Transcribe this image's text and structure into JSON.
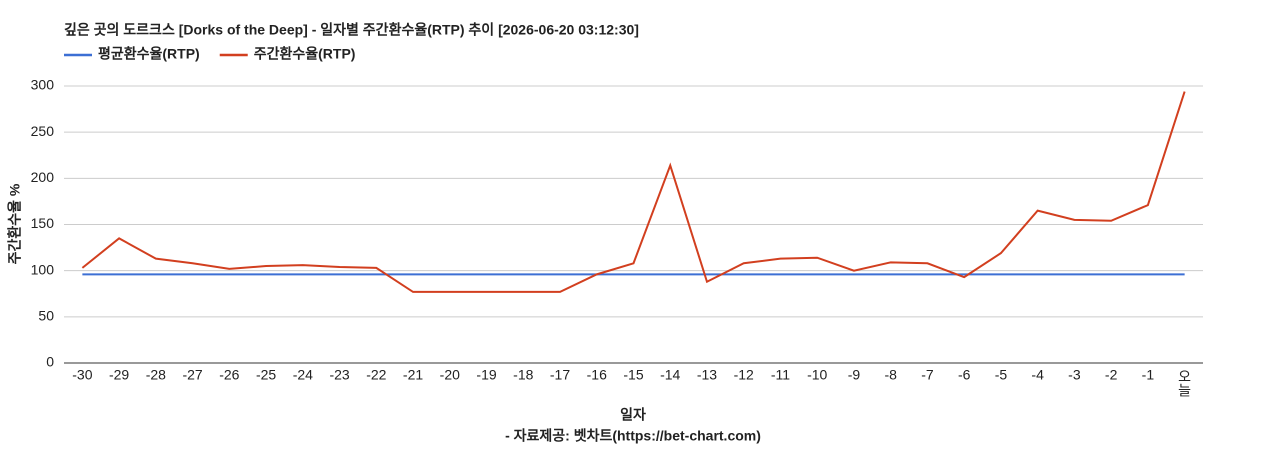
{
  "chart_data": {
    "type": "line",
    "title": "깊은 곳의 도르크스 [Dorks of the Deep] - 일자별 주간환수율(RTP) 추이 [2026-06-20 03:12:30]",
    "x_label": "일자",
    "y_label": "주간환수율 %",
    "source": "- 자료제공: 벳차트(https://bet-chart.com)",
    "categories": [
      "-30",
      "-29",
      "-28",
      "-27",
      "-26",
      "-25",
      "-24",
      "-23",
      "-22",
      "-21",
      "-20",
      "-19",
      "-18",
      "-17",
      "-16",
      "-15",
      "-14",
      "-13",
      "-12",
      "-11",
      "-10",
      "-9",
      "-8",
      "-7",
      "-6",
      "-5",
      "-4",
      "-3",
      "-2",
      "-1",
      "오늘"
    ],
    "series": [
      {
        "name": "평균환수율(RTP)",
        "color": "#3c6fd4",
        "values": [
          96,
          96,
          96,
          96,
          96,
          96,
          96,
          96,
          96,
          96,
          96,
          96,
          96,
          96,
          96,
          96,
          96,
          96,
          96,
          96,
          96,
          96,
          96,
          96,
          96,
          96,
          96,
          96,
          96,
          96,
          96
        ]
      },
      {
        "name": "주간환수율(RTP)",
        "color": "#d23f1f",
        "values": [
          103,
          135,
          113,
          108,
          102,
          105,
          106,
          104,
          103,
          77,
          77,
          77,
          77,
          77,
          96,
          108,
          214,
          88,
          108,
          113,
          114,
          100,
          109,
          108,
          93,
          119,
          165,
          155,
          154,
          171,
          294
        ]
      }
    ],
    "ylim": [
      0,
      300
    ],
    "yticks": [
      0,
      50,
      100,
      150,
      200,
      250,
      300
    ],
    "grid": true
  }
}
